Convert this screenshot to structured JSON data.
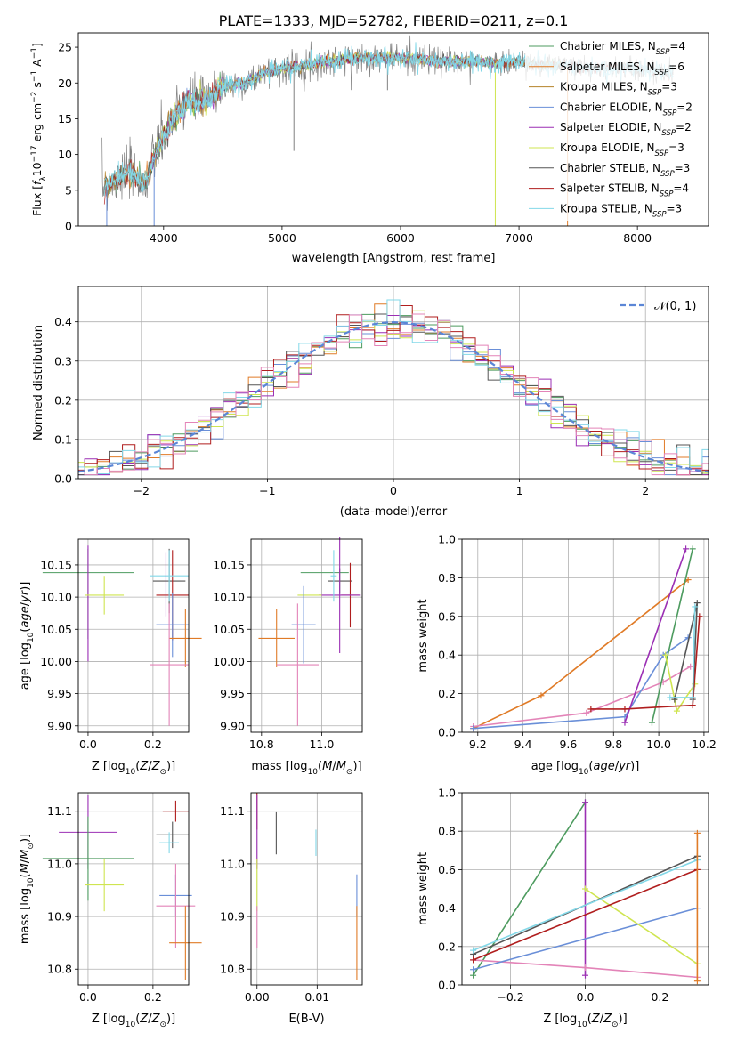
{
  "figure_title": "PLATE=1333, MJD=52782, FIBERID=0211, z=0.1",
  "colors": {
    "Chabrier MILES": "#4d9b5f",
    "Salpeter MILES": "#e07b27",
    "Kroupa MILES": "#b4832a",
    "Chabrier ELODIE": "#6a8fd8",
    "Salpeter ELODIE": "#9b2fb4",
    "Kroupa ELODIE": "#cfe550",
    "Chabrier STELIB": "#555555",
    "Salpeter STELIB": "#b01e1e",
    "Kroupa STELIB": "#83d8e8",
    "Kroupa ELODIE (alt)": "#e384b8",
    "gaussian": "#5b86d6",
    "grid": "#b0b0b0",
    "spectrum": "#808080"
  },
  "chart_data": [
    {
      "id": "spectrum",
      "type": "line",
      "title": "PLATE=1333, MJD=52782, FIBERID=0211, z=0.1",
      "xlabel": "wavelength [Angstrom, rest frame]",
      "ylabel": "Flux [f_λ 10^-17 erg cm^-2 s^-1 A^-1]",
      "xlim": [
        3280,
        8600
      ],
      "ylim": [
        0,
        27
      ],
      "xticks": [
        4000,
        5000,
        6000,
        7000,
        8000
      ],
      "yticks": [
        0,
        5,
        10,
        15,
        20,
        25
      ],
      "grid": false,
      "legend_position": "top-right",
      "legend": [
        {
          "name": "Chabrier MILES",
          "nssp": "4"
        },
        {
          "name": "Salpeter MILES",
          "nssp": "6"
        },
        {
          "name": "Kroupa MILES",
          "nssp": "3"
        },
        {
          "name": "Chabrier ELODIE",
          "nssp": "2"
        },
        {
          "name": "Salpeter ELODIE",
          "nssp": "2"
        },
        {
          "name": "Kroupa ELODIE",
          "nssp": "3"
        },
        {
          "name": "Chabrier STELIB",
          "nssp": "3"
        },
        {
          "name": "Salpeter STELIB",
          "nssp": "4"
        },
        {
          "name": "Kroupa STELIB",
          "nssp": "3"
        }
      ],
      "continuum": {
        "x": [
          3500,
          3700,
          3850,
          3950,
          4050,
          4200,
          4350,
          4500,
          4700,
          4850,
          5000,
          5200,
          5400,
          5600,
          5800,
          6000,
          6200,
          6400,
          6600,
          6800,
          7000,
          7200,
          7400,
          7600,
          7800,
          8000,
          8200,
          8300
        ],
        "y": [
          5.5,
          7.5,
          6.0,
          11.0,
          14.0,
          17.5,
          17.5,
          19.5,
          20.0,
          21.5,
          22.0,
          22.5,
          23.0,
          23.5,
          23.5,
          23.5,
          23.2,
          23.0,
          23.0,
          22.8,
          23.0,
          22.5,
          22.5,
          22.0,
          22.0,
          22.0,
          21.5,
          21.5
        ]
      },
      "features": [
        {
          "x": 5100,
          "y": 10.5
        },
        {
          "x": 5890,
          "y": 19.0
        },
        {
          "x": 3520,
          "y": 0
        },
        {
          "x": 3920,
          "y": 0
        },
        {
          "x": 6800,
          "y": 0
        },
        {
          "x": 7410,
          "y": 0
        }
      ]
    },
    {
      "id": "residuals",
      "type": "bar",
      "xlabel": "(data-model)/error",
      "ylabel": "Normed distribution",
      "xlim": [
        -2.5,
        2.5
      ],
      "ylim": [
        0,
        0.49
      ],
      "xticks": [
        -2,
        -1,
        0,
        1,
        2
      ],
      "yticks": [
        0.0,
        0.1,
        0.2,
        0.3,
        0.4
      ],
      "grid": true,
      "legend_position": "top-right",
      "legend": [
        {
          "name": "N(0,1)",
          "label": "𝒩(0, 1)"
        }
      ],
      "bin_width": 0.1
    },
    {
      "id": "age_vs_Z",
      "type": "scatter",
      "xlabel": "Z [log10(Z/Z⊙)]",
      "ylabel": "age [log10(age/yr)]",
      "xlim": [
        -0.03,
        0.31
      ],
      "ylim": [
        9.89,
        10.19
      ],
      "xticks": [
        0.0,
        0.2
      ],
      "yticks": [
        9.9,
        9.95,
        10.0,
        10.05,
        10.1,
        10.15
      ],
      "grid": true,
      "points": [
        {
          "series": "Chabrier MILES",
          "x": 0.0,
          "y": 10.105,
          "xerr": 0.0,
          "yerr": 0.07
        },
        {
          "series": "Chabrier MILES",
          "x": 0.0,
          "y": 10.138,
          "xerr": 0.14,
          "yerr": 0.0
        },
        {
          "series": "Salpeter ELODIE",
          "x": 0.0,
          "y": 10.09,
          "xerr": 0.0,
          "yerr": 0.09
        },
        {
          "series": "Kroupa ELODIE",
          "x": 0.05,
          "y": 10.103,
          "xerr": 0.06,
          "yerr": 0.03
        },
        {
          "series": "Chabrier STELIB",
          "x": 0.25,
          "y": 10.125,
          "xerr": 0.05,
          "yerr": 0.05
        },
        {
          "series": "Salpeter STELIB",
          "x": 0.26,
          "y": 10.103,
          "xerr": 0.05,
          "yerr": 0.07
        },
        {
          "series": "Kroupa STELIB",
          "x": 0.25,
          "y": 10.133,
          "xerr": 0.06,
          "yerr": 0.04
        },
        {
          "series": "Salpeter ELODIE",
          "x": 0.24,
          "y": 10.12,
          "xerr": 0.0,
          "yerr": 0.05
        },
        {
          "series": "Chabrier ELODIE",
          "x": 0.26,
          "y": 10.057,
          "xerr": 0.05,
          "yerr": 0.05
        },
        {
          "series": "Salpeter MILES",
          "x": 0.3,
          "y": 10.036,
          "xerr": 0.05,
          "yerr": 0.045
        },
        {
          "series": "Kroupa ELODIE (alt)",
          "x": 0.25,
          "y": 9.995,
          "xerr": 0.06,
          "yerr": 0.095
        }
      ]
    },
    {
      "id": "age_vs_mass",
      "type": "scatter",
      "xlabel": "mass [log10(M/M⊙)]",
      "ylabel": "",
      "xlim": [
        10.765,
        11.135
      ],
      "ylim": [
        9.89,
        10.19
      ],
      "xticks": [
        10.8,
        11.0
      ],
      "yticks": [
        9.9,
        9.95,
        10.0,
        10.05,
        10.1,
        10.15
      ],
      "grid": true,
      "points": [
        {
          "series": "Chabrier MILES",
          "x": 11.01,
          "y": 10.138,
          "xerr": 0.08,
          "yerr": 0.0
        },
        {
          "series": "Chabrier STELIB",
          "x": 11.06,
          "y": 10.125,
          "xerr": 0.04,
          "yerr": 0.02
        },
        {
          "series": "Salpeter STELIB",
          "x": 11.095,
          "y": 10.103,
          "xerr": 0.03,
          "yerr": 0.05
        },
        {
          "series": "Salpeter ELODIE",
          "x": 11.06,
          "y": 10.103,
          "xerr": 0.07,
          "yerr": 0.09
        },
        {
          "series": "Kroupa STELIB",
          "x": 11.04,
          "y": 10.133,
          "xerr": 0.01,
          "yerr": 0.04
        },
        {
          "series": "Kroupa ELODIE",
          "x": 10.96,
          "y": 10.103,
          "xerr": 0.04,
          "yerr": 0.0
        },
        {
          "series": "Chabrier ELODIE",
          "x": 10.94,
          "y": 10.057,
          "xerr": 0.04,
          "yerr": 0.06
        },
        {
          "series": "Salpeter MILES",
          "x": 10.85,
          "y": 10.036,
          "xerr": 0.06,
          "yerr": 0.045
        },
        {
          "series": "Kroupa ELODIE (alt)",
          "x": 10.92,
          "y": 9.995,
          "xerr": 0.07,
          "yerr": 0.095
        }
      ]
    },
    {
      "id": "weight_vs_age",
      "type": "line",
      "xlabel": "age [log10(age/yr)]",
      "ylabel": "mass weight",
      "xlim": [
        9.13,
        10.22
      ],
      "ylim": [
        0.0,
        1.0
      ],
      "xticks": [
        9.2,
        9.4,
        9.6,
        9.8,
        10.0,
        10.2
      ],
      "yticks": [
        0.0,
        0.2,
        0.4,
        0.6,
        0.8,
        1.0
      ],
      "grid": true,
      "series": [
        {
          "name": "Salpeter MILES",
          "x": [
            9.18,
            9.48,
            10.13
          ],
          "y": [
            0.02,
            0.19,
            0.79
          ]
        },
        {
          "name": "Kroupa ELODIE (alt)",
          "x": [
            9.18,
            9.68,
            10.02,
            10.14
          ],
          "y": [
            0.03,
            0.1,
            0.26,
            0.34
          ]
        },
        {
          "name": "Chabrier ELODIE",
          "x": [
            9.18,
            9.85,
            10.02,
            10.13
          ],
          "y": [
            0.02,
            0.08,
            0.4,
            0.49
          ]
        },
        {
          "name": "Salpeter ELODIE",
          "x": [
            9.85,
            10.12
          ],
          "y": [
            0.05,
            0.95
          ]
        },
        {
          "name": "Chabrier MILES",
          "x": [
            9.97,
            10.15
          ],
          "y": [
            0.05,
            0.95
          ]
        },
        {
          "name": "Kroupa ELODIE",
          "x": [
            10.03,
            10.07,
            10.08,
            10.16
          ],
          "y": [
            0.4,
            0.17,
            0.11,
            0.25
          ]
        },
        {
          "name": "Salpeter STELIB",
          "x": [
            9.7,
            9.85,
            10.15,
            10.18
          ],
          "y": [
            0.12,
            0.12,
            0.14,
            0.6
          ]
        },
        {
          "name": "Chabrier STELIB",
          "x": [
            10.07,
            10.17,
            10.15
          ],
          "y": [
            0.17,
            0.67,
            0.17
          ]
        },
        {
          "name": "Kroupa STELIB",
          "x": [
            10.05,
            10.15,
            10.16
          ],
          "y": [
            0.18,
            0.18,
            0.65
          ]
        }
      ]
    },
    {
      "id": "mass_vs_Z",
      "type": "scatter",
      "xlabel": "Z [log10(Z/Z⊙)]",
      "ylabel": "mass [log10(M/M⊙)]",
      "xlim": [
        -0.03,
        0.31
      ],
      "ylim": [
        10.77,
        11.135
      ],
      "xticks": [
        0.0,
        0.2
      ],
      "yticks": [
        10.8,
        10.9,
        11.0,
        11.1
      ],
      "grid": true,
      "points": [
        {
          "series": "Salpeter ELODIE",
          "x": 0.0,
          "y": 11.06,
          "xerr": 0.09,
          "yerr": 0.07
        },
        {
          "series": "Chabrier MILES",
          "x": 0.0,
          "y": 11.01,
          "xerr": 0.14,
          "yerr": 0.08
        },
        {
          "series": "Kroupa ELODIE",
          "x": 0.05,
          "y": 10.96,
          "xerr": 0.06,
          "yerr": 0.05
        },
        {
          "series": "Salpeter STELIB",
          "x": 0.27,
          "y": 11.1,
          "xerr": 0.04,
          "yerr": 0.02
        },
        {
          "series": "Chabrier STELIB",
          "x": 0.26,
          "y": 11.055,
          "xerr": 0.05,
          "yerr": 0.025
        },
        {
          "series": "Kroupa STELIB",
          "x": 0.25,
          "y": 11.04,
          "xerr": 0.03,
          "yerr": 0.02
        },
        {
          "series": "Chabrier ELODIE",
          "x": 0.27,
          "y": 10.94,
          "xerr": 0.05,
          "yerr": 0.04
        },
        {
          "series": "Kroupa ELODIE (alt)",
          "x": 0.27,
          "y": 10.92,
          "xerr": 0.06,
          "yerr": 0.08
        },
        {
          "series": "Salpeter MILES",
          "x": 0.3,
          "y": 10.85,
          "xerr": 0.05,
          "yerr": 0.07
        }
      ]
    },
    {
      "id": "mass_vs_EBV",
      "type": "scatter",
      "xlabel": "E(B-V)",
      "ylabel": "",
      "xlim": [
        -0.001,
        0.0175
      ],
      "ylim": [
        10.77,
        11.135
      ],
      "xticks": [
        0.0,
        0.01
      ],
      "yticks": [
        10.8,
        10.9,
        11.0,
        11.1
      ],
      "grid": true,
      "points": [
        {
          "series": "Salpeter STELIB",
          "x": 0.0,
          "y": 11.1,
          "xerr": 0.0,
          "yerr": 0.035
        },
        {
          "series": "Salpeter ELODIE",
          "x": 0.0,
          "y": 11.06,
          "xerr": 0.0,
          "yerr": 0.07
        },
        {
          "series": "Kroupa ELODIE",
          "x": 0.0,
          "y": 10.96,
          "xerr": 0.0,
          "yerr": 0.05
        },
        {
          "series": "Kroupa ELODIE (alt)",
          "x": 0.0,
          "y": 10.88,
          "xerr": 0.0,
          "yerr": 0.04
        },
        {
          "series": "Chabrier STELIB",
          "x": 0.0032,
          "y": 11.058,
          "xerr": 0.0,
          "yerr": 0.04
        },
        {
          "series": "Kroupa STELIB",
          "x": 0.0098,
          "y": 11.04,
          "xerr": 0.0,
          "yerr": 0.025
        },
        {
          "series": "Chabrier ELODIE",
          "x": 0.0166,
          "y": 10.94,
          "xerr": 0.0,
          "yerr": 0.04
        },
        {
          "series": "Salpeter MILES",
          "x": 0.0166,
          "y": 10.85,
          "xerr": 0.0,
          "yerr": 0.07
        }
      ]
    },
    {
      "id": "weight_vs_Z",
      "type": "line",
      "xlabel": "Z [log10(Z/Z⊙)]",
      "ylabel": "mass weight",
      "xlim": [
        -0.33,
        0.33
      ],
      "ylim": [
        0.0,
        1.0
      ],
      "xticks": [
        -0.2,
        0.0,
        0.2
      ],
      "yticks": [
        0.0,
        0.2,
        0.4,
        0.6,
        0.8,
        1.0
      ],
      "grid": true,
      "series": [
        {
          "name": "Chabrier MILES",
          "x": [
            -0.3,
            0.0
          ],
          "y": [
            0.05,
            0.95
          ]
        },
        {
          "name": "Salpeter ELODIE",
          "x": [
            0.0,
            0.0
          ],
          "y": [
            0.05,
            0.95
          ]
        },
        {
          "name": "Kroupa ELODIE (alt)",
          "x": [
            -0.3,
            0.0,
            0.3
          ],
          "y": [
            0.13,
            0.09,
            0.04
          ]
        },
        {
          "name": "Chabrier ELODIE",
          "x": [
            -0.3,
            0.3
          ],
          "y": [
            0.08,
            0.4
          ]
        },
        {
          "name": "Kroupa ELODIE",
          "x": [
            0.0,
            0.3
          ],
          "y": [
            0.5,
            0.11
          ]
        },
        {
          "name": "Chabrier STELIB",
          "x": [
            -0.3,
            0.3
          ],
          "y": [
            0.16,
            0.67
          ]
        },
        {
          "name": "Kroupa STELIB",
          "x": [
            -0.3,
            0.3
          ],
          "y": [
            0.18,
            0.65
          ]
        },
        {
          "name": "Salpeter STELIB",
          "x": [
            -0.3,
            0.3
          ],
          "y": [
            0.13,
            0.6
          ]
        },
        {
          "name": "Salpeter MILES",
          "x": [
            0.3,
            0.3
          ],
          "y": [
            0.02,
            0.79
          ]
        }
      ]
    }
  ]
}
